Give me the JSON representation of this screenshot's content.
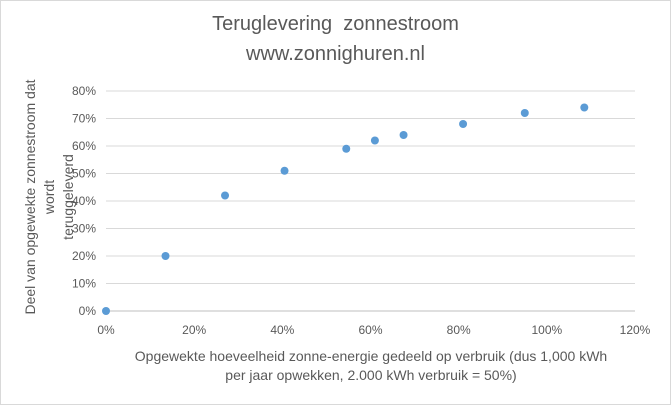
{
  "chart_data": {
    "type": "scatter",
    "title": [
      "Teruglevering  zonnestroom",
      "www.zonnighuren.nl"
    ],
    "xlabel": [
      "Opgewekte hoeveelheid zonne-energie gedeeld op verbruik (dus 1,000 kWh",
      "per jaar opwekken, 2.000 kWh verbruik = 50%)"
    ],
    "ylabel": [
      "Deel van opgewekte zonnestroom dat wordt",
      "teruggeleverd"
    ],
    "xlim": [
      0,
      120
    ],
    "ylim": [
      0,
      80
    ],
    "x_ticks": [
      "0%",
      "20%",
      "40%",
      "60%",
      "80%",
      "100%",
      "120%"
    ],
    "y_ticks": [
      "0%",
      "10%",
      "20%",
      "30%",
      "40%",
      "50%",
      "60%",
      "70%",
      "80%"
    ],
    "grid": "horizontal",
    "marker_color": "#5b9bd5",
    "series": [
      {
        "x": [
          0,
          13.5,
          27,
          40.5,
          54.5,
          61,
          67.5,
          81,
          95,
          108.5
        ],
        "y": [
          0,
          20,
          42,
          51,
          59,
          62,
          64,
          68,
          72,
          74
        ]
      }
    ]
  }
}
